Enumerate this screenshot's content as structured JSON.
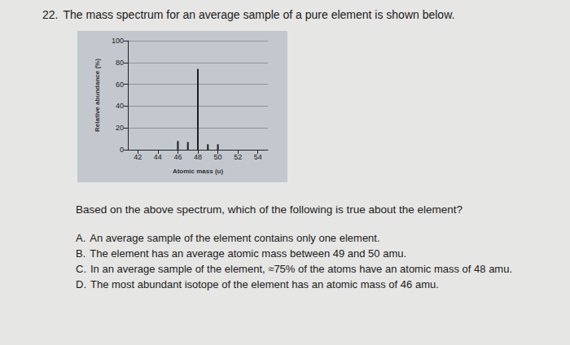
{
  "question": {
    "number": "22.",
    "stem": "The mass spectrum for an average sample of a pure element is shown below.",
    "prompt": "Based on the above spectrum, which of the following is true about the element?",
    "options": [
      {
        "letter": "A.",
        "text": "An average sample of the element contains only one element."
      },
      {
        "letter": "B.",
        "text": "The element has an average atomic mass between 49 and 50 amu."
      },
      {
        "letter": "C.",
        "text": "In an average sample of the element, ≈75% of the atoms have an atomic mass of 48 amu."
      },
      {
        "letter": "D.",
        "text": "The most abundant isotope of the element has an atomic mass of 46 amu."
      }
    ]
  },
  "chart_data": {
    "type": "bar",
    "x_label": "Atomic mass (u)",
    "y_label": "Relative abundance (%)",
    "x": [
      46,
      47,
      48,
      49,
      50
    ],
    "values": [
      8,
      7,
      74,
      5,
      5
    ],
    "color": "#1e1e1e",
    "xlim": [
      41,
      55
    ],
    "xticks": [
      42,
      44,
      46,
      48,
      50,
      52,
      54
    ],
    "ylim": [
      0,
      100
    ],
    "yticks": [
      0,
      20,
      40,
      60,
      80,
      100
    ],
    "grid": true
  }
}
